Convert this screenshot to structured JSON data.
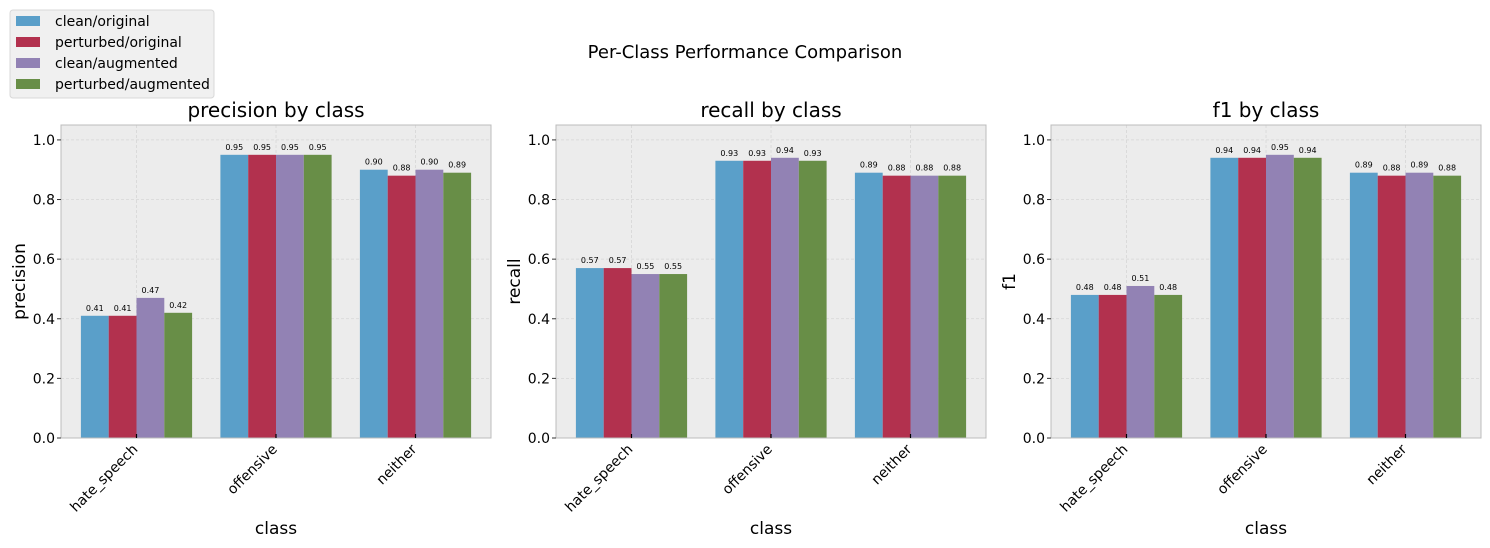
{
  "title": "Per-Class Performance Comparison",
  "legend": {
    "placement": "upper-left",
    "entries": [
      {
        "name": "clean/original",
        "color": "#5a9fc9"
      },
      {
        "name": "perturbed/original",
        "color": "#b2314e"
      },
      {
        "name": "clean/augmented",
        "color": "#9282b4"
      },
      {
        "name": "perturbed/augmented",
        "color": "#688e47"
      }
    ]
  },
  "chart_data": [
    {
      "type": "bar",
      "title": "precision by class",
      "xlabel": "class",
      "ylabel": "precision",
      "categories": [
        "hate_speech",
        "offensive",
        "neither"
      ],
      "ylim": [
        0,
        1.05
      ],
      "yticks": [
        "0.0",
        "0.2",
        "0.4",
        "0.6",
        "0.8",
        "1.0"
      ],
      "grid": true,
      "series": [
        {
          "name": "clean/original",
          "values": [
            0.41,
            0.95,
            0.9
          ],
          "labels": [
            "0.41",
            "0.95",
            "0.90"
          ]
        },
        {
          "name": "perturbed/original",
          "values": [
            0.41,
            0.95,
            0.88
          ],
          "labels": [
            "0.41",
            "0.95",
            "0.88"
          ]
        },
        {
          "name": "clean/augmented",
          "values": [
            0.47,
            0.95,
            0.9
          ],
          "labels": [
            "0.47",
            "0.95",
            "0.90"
          ]
        },
        {
          "name": "perturbed/augmented",
          "values": [
            0.42,
            0.95,
            0.89
          ],
          "labels": [
            "0.42",
            "0.95",
            "0.89"
          ]
        }
      ]
    },
    {
      "type": "bar",
      "title": "recall by class",
      "xlabel": "class",
      "ylabel": "recall",
      "categories": [
        "hate_speech",
        "offensive",
        "neither"
      ],
      "ylim": [
        0,
        1.05
      ],
      "yticks": [
        "0.0",
        "0.2",
        "0.4",
        "0.6",
        "0.8",
        "1.0"
      ],
      "grid": true,
      "series": [
        {
          "name": "clean/original",
          "values": [
            0.57,
            0.93,
            0.89
          ],
          "labels": [
            "0.57",
            "0.93",
            "0.89"
          ]
        },
        {
          "name": "perturbed/original",
          "values": [
            0.57,
            0.93,
            0.88
          ],
          "labels": [
            "0.57",
            "0.93",
            "0.88"
          ]
        },
        {
          "name": "clean/augmented",
          "values": [
            0.55,
            0.94,
            0.88
          ],
          "labels": [
            "0.55",
            "0.94",
            "0.88"
          ]
        },
        {
          "name": "perturbed/augmented",
          "values": [
            0.55,
            0.93,
            0.88
          ],
          "labels": [
            "0.55",
            "0.93",
            "0.88"
          ]
        }
      ]
    },
    {
      "type": "bar",
      "title": "f1 by class",
      "xlabel": "class",
      "ylabel": "f1",
      "categories": [
        "hate_speech",
        "offensive",
        "neither"
      ],
      "ylim": [
        0,
        1.05
      ],
      "yticks": [
        "0.0",
        "0.2",
        "0.4",
        "0.6",
        "0.8",
        "1.0"
      ],
      "grid": true,
      "series": [
        {
          "name": "clean/original",
          "values": [
            0.48,
            0.94,
            0.89
          ],
          "labels": [
            "0.48",
            "0.94",
            "0.89"
          ]
        },
        {
          "name": "perturbed/original",
          "values": [
            0.48,
            0.94,
            0.88
          ],
          "labels": [
            "0.48",
            "0.94",
            "0.88"
          ]
        },
        {
          "name": "clean/augmented",
          "values": [
            0.51,
            0.95,
            0.89
          ],
          "labels": [
            "0.51",
            "0.95",
            "0.89"
          ]
        },
        {
          "name": "perturbed/augmented",
          "values": [
            0.48,
            0.94,
            0.88
          ],
          "labels": [
            "0.48",
            "0.94",
            "0.88"
          ]
        }
      ]
    }
  ]
}
